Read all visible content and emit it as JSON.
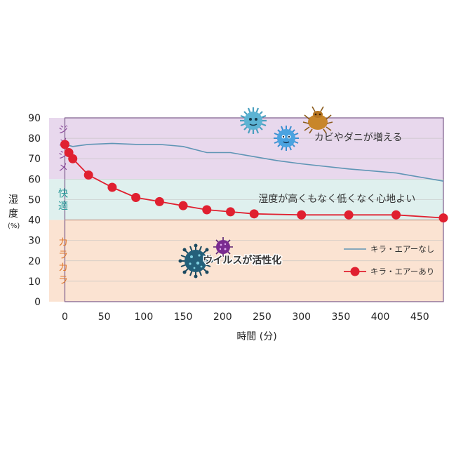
{
  "chart_data": {
    "type": "line",
    "xlabel": "時間 (分)",
    "ylabel_main": "湿度",
    "ylabel_unit": "(%)",
    "xlim": [
      -20,
      480
    ],
    "ylim": [
      0,
      90
    ],
    "xticks": [
      0,
      50,
      100,
      150,
      200,
      250,
      300,
      350,
      400,
      450
    ],
    "yticks": [
      0,
      10,
      20,
      30,
      40,
      50,
      60,
      70,
      80,
      90
    ],
    "zones": [
      {
        "label": "ジメジメ",
        "from": 60,
        "to": 90,
        "color": "#e8d8ed",
        "label_color": "#8a4a9a"
      },
      {
        "label": "快適",
        "from": 40,
        "to": 60,
        "color": "#dff0ee",
        "label_color": "#2a9a9a"
      },
      {
        "label": "カラカラ",
        "from": 0,
        "to": 40,
        "color": "#fbe3d2",
        "label_color": "#e07a30"
      }
    ],
    "annotations": [
      {
        "text": "カビやダニが増える",
        "x": 372,
        "y": 80.5,
        "color": "#333333"
      },
      {
        "text": "湿度が高くもなく低くなく心地よい",
        "x": 345,
        "y": 50.5,
        "color": "#333333"
      },
      {
        "text": "ウイルスが活性化",
        "x": 225,
        "y": 20.5,
        "color": "#f0a020",
        "bold": true
      }
    ],
    "series": [
      {
        "name": "キラ・エアーなし",
        "color": "#5f95b5",
        "style": "line",
        "x": [
          0,
          10,
          30,
          60,
          90,
          120,
          150,
          180,
          210,
          240,
          270,
          300,
          360,
          420,
          480
        ],
        "y": [
          77,
          76,
          77,
          77.5,
          77,
          77,
          76,
          73,
          73,
          71,
          69,
          67.5,
          65,
          63,
          59
        ]
      },
      {
        "name": "キラ・エアーあり",
        "color": "#e02030",
        "style": "line-markers",
        "x": [
          0,
          5,
          10,
          30,
          60,
          90,
          120,
          150,
          180,
          210,
          240,
          300,
          360,
          420,
          480
        ],
        "y": [
          77,
          73,
          70,
          62,
          56,
          51,
          49,
          47,
          45,
          44,
          43,
          42.5,
          42.5,
          42.5,
          41
        ]
      }
    ]
  }
}
